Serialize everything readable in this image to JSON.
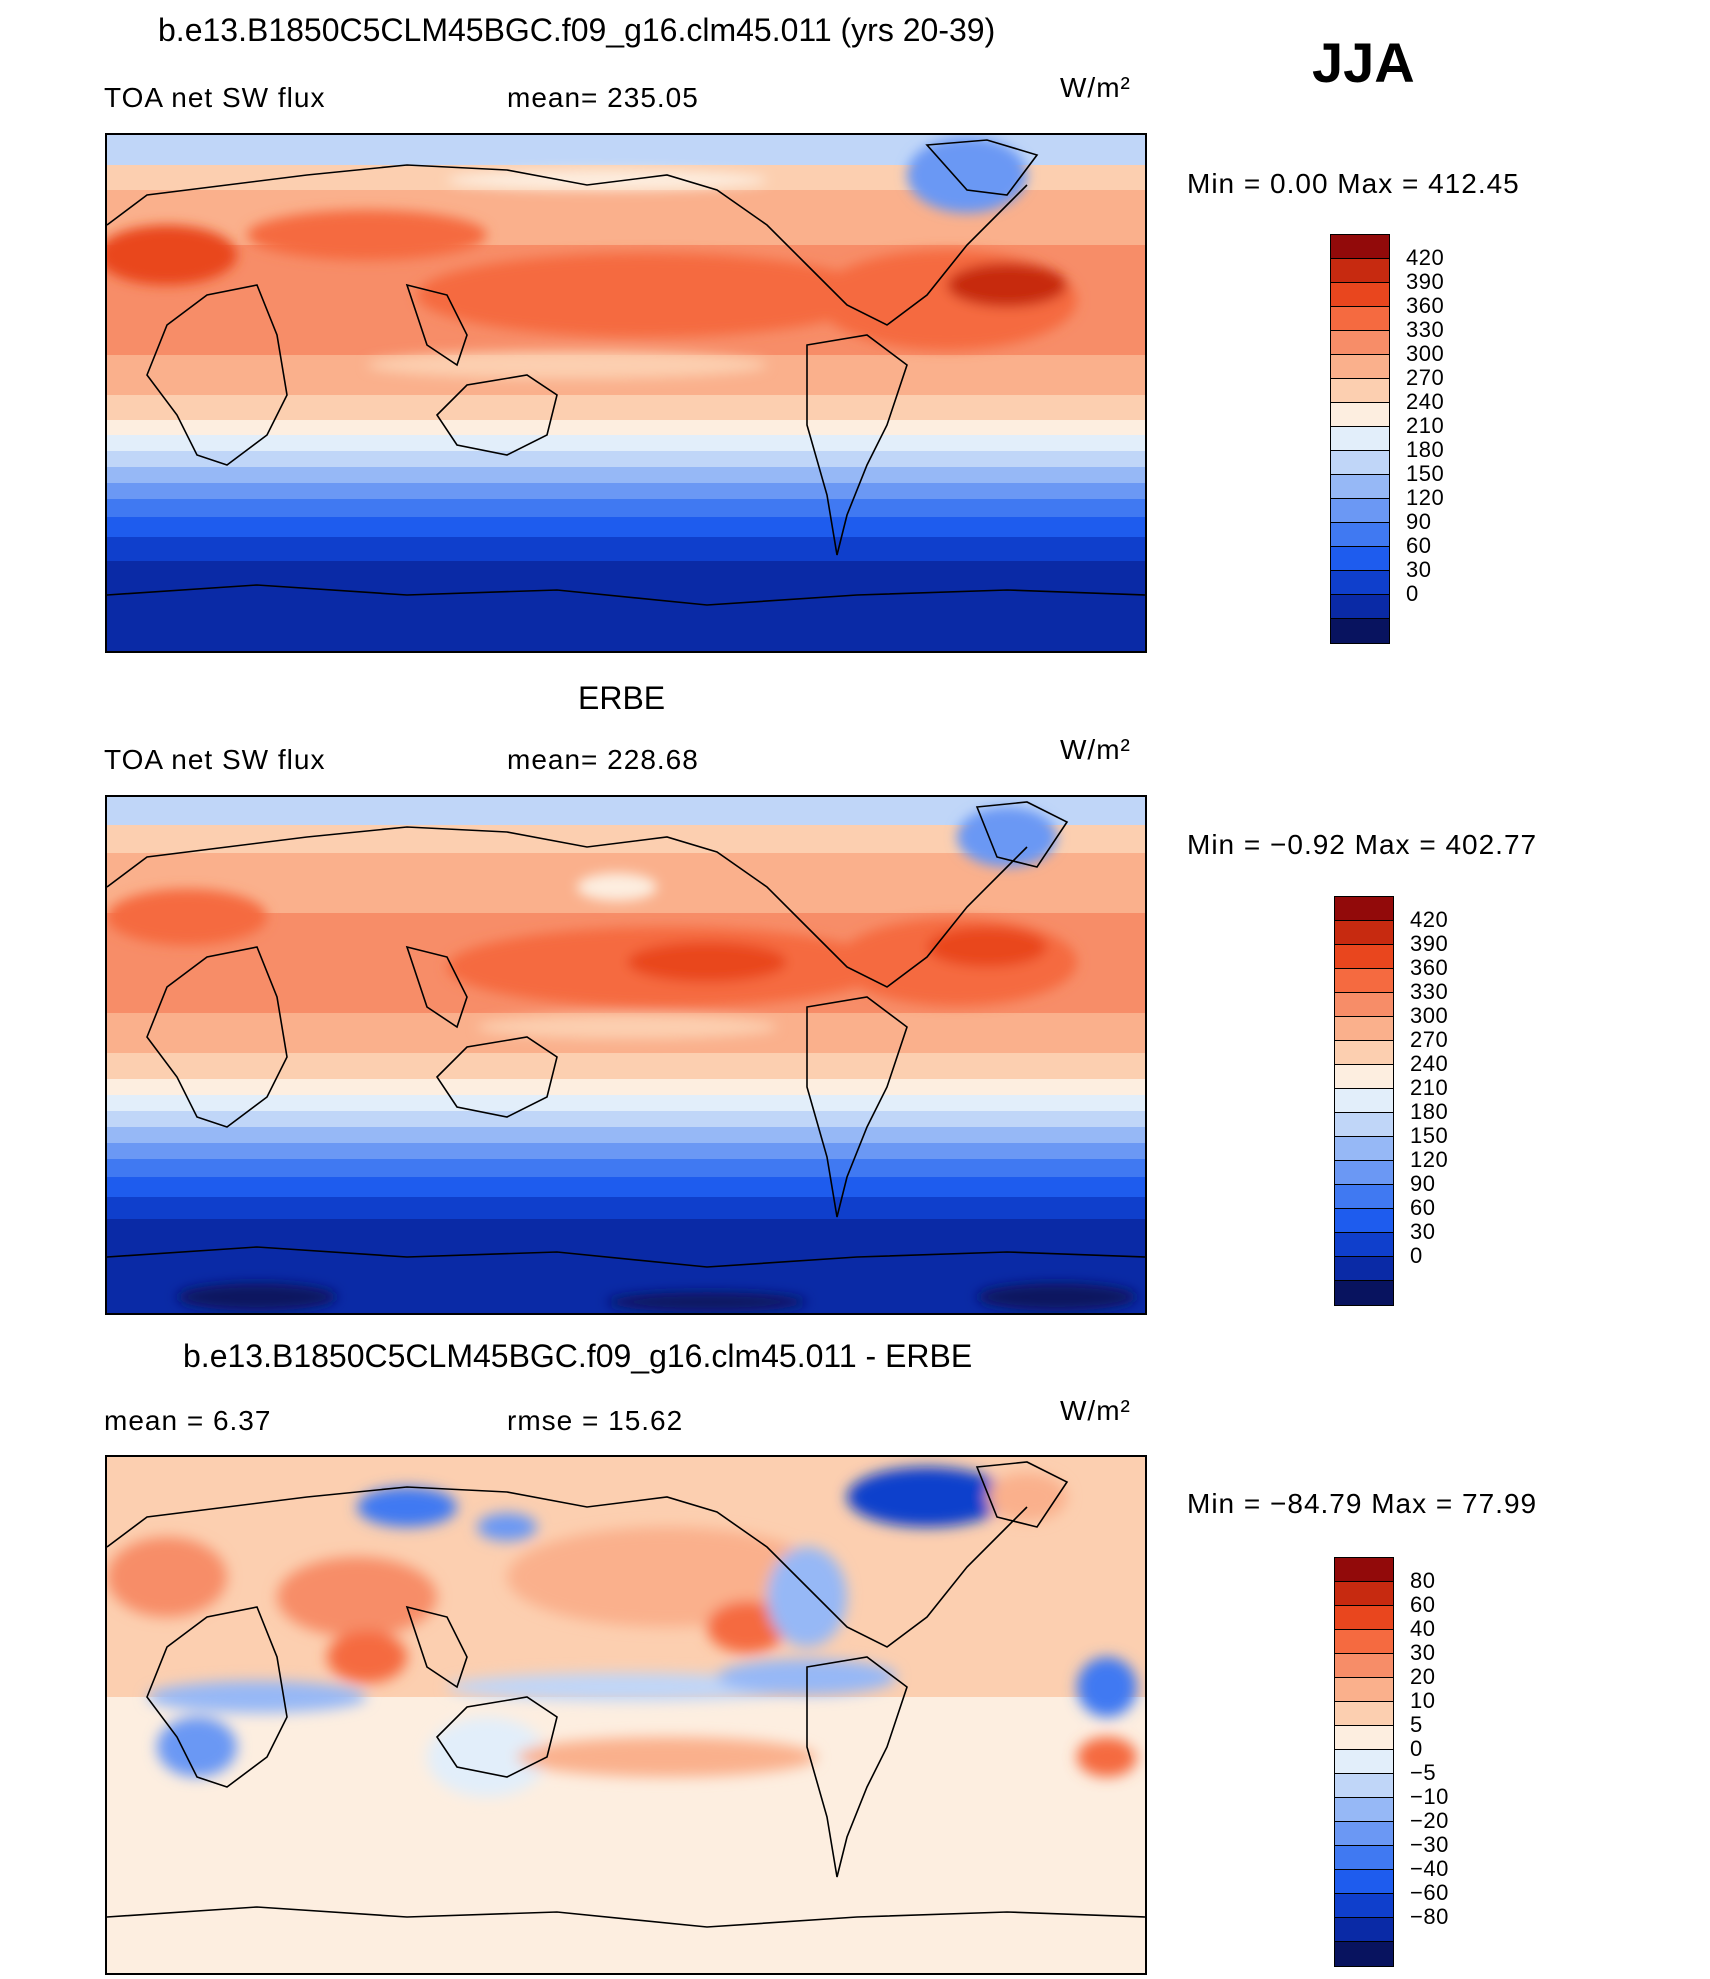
{
  "season": "JJA",
  "colors": {
    "flux": [
      "#08135f",
      "#0a2aa6",
      "#0f3fcc",
      "#1e5cee",
      "#4079f2",
      "#6b98f4",
      "#96b8f6",
      "#c0d6f8",
      "#e2eefa",
      "#fdeee0",
      "#fccfb0",
      "#fab08c",
      "#f78d68",
      "#f56a40",
      "#e9461e",
      "#c72a10",
      "#920a0a"
    ],
    "diff": [
      "#08135f",
      "#0a2aa6",
      "#0f3fcc",
      "#1e5cee",
      "#4079f2",
      "#6b98f4",
      "#96b8f6",
      "#c0d6f8",
      "#e2eefa",
      "#fdeee0",
      "#fccfb0",
      "#fab08c",
      "#f78d68",
      "#f56a40",
      "#e9461e",
      "#c72a10",
      "#920a0a"
    ],
    "land_outline": "#000000"
  },
  "panels": [
    {
      "title": "b.e13.B1850C5CLM45BGC.f09_g16.clm45.011 (yrs 20-39)",
      "left_label": "TOA net SW flux",
      "mid_label": "mean=  235.05",
      "units": "W/m²",
      "min_max": "Min  =     0.00  Max  =  412.45",
      "ticks": [
        "420",
        "390",
        "360",
        "330",
        "300",
        "270",
        "240",
        "210",
        "180",
        "150",
        "120",
        "90",
        "60",
        "30",
        "0"
      ]
    },
    {
      "title": "ERBE",
      "left_label": "TOA net SW flux",
      "mid_label": "mean=  228.68",
      "units": "W/m²",
      "min_max": "Min  =   −0.92  Max  =  402.77",
      "ticks": [
        "420",
        "390",
        "360",
        "330",
        "300",
        "270",
        "240",
        "210",
        "180",
        "150",
        "120",
        "90",
        "60",
        "30",
        "0"
      ]
    },
    {
      "title": "b.e13.B1850C5CLM45BGC.f09_g16.clm45.011 - ERBE",
      "left_label": "mean  =      6.37",
      "mid_label": "rmse  =     15.62",
      "units": "W/m²",
      "min_max": "Min  = −84.79  Max  =    77.99",
      "ticks": [
        "80",
        "60",
        "40",
        "30",
        "20",
        "10",
        "5",
        "0",
        "−5",
        "−10",
        "−20",
        "−30",
        "−40",
        "−60",
        "−80"
      ]
    }
  ]
}
